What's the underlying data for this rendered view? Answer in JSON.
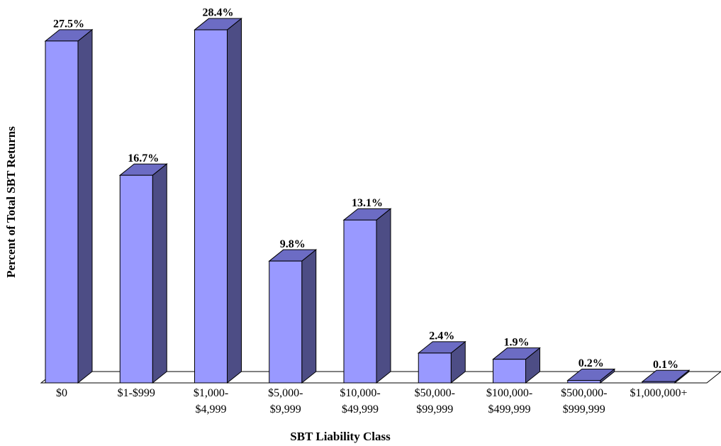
{
  "chart_data": {
    "type": "bar3d",
    "x_label": "SBT Liability Class",
    "y_label": "Percent of Total SBT Returns",
    "categories": [
      "$0",
      "$1-$999",
      "$1,000-\n$4,999",
      "$5,000-\n$9,999",
      "$10,000-\n$49,999",
      "$50,000-\n$99,999",
      "$100,000-\n$499,999",
      "$500,000-\n$999,999",
      "$1,000,000+"
    ],
    "values": [
      27.5,
      16.7,
      28.4,
      9.8,
      13.1,
      2.4,
      1.9,
      0.2,
      0.1
    ],
    "value_labels": [
      "27.5%",
      "16.7%",
      "28.4%",
      "9.8%",
      "13.1%",
      "2.4%",
      "1.9%",
      "0.2%",
      "0.1%"
    ],
    "colors": {
      "front": "#9999ff",
      "side": "#4d4d85",
      "top": "#6c6cc4"
    },
    "ylim": [
      0,
      30
    ]
  }
}
